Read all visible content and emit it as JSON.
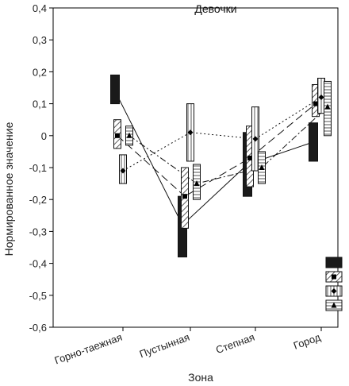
{
  "chart_data": {
    "type": "line",
    "title": "Девочки",
    "xlabel": "Зона",
    "ylabel": "Нормированное значение",
    "ylim": [
      -0.6,
      0.4
    ],
    "yticks": [
      -0.6,
      -0.5,
      -0.4,
      -0.3,
      -0.2,
      -0.1,
      0,
      0.1,
      0.2,
      0.3,
      0.4
    ],
    "ytick_labels": [
      "-0,6",
      "-0,5",
      "-0,4",
      "-0,3",
      "-0,2",
      "-0,1",
      "0",
      "0,1",
      "0,2",
      "0,3",
      "0,4"
    ],
    "categories": [
      "Горно-таежная",
      "Пустынная",
      "Степная",
      "Город"
    ],
    "grid": false,
    "legend_position": "bottom-right",
    "series": [
      {
        "pattern": "solid",
        "line_style": "solid",
        "marker": "none",
        "values": [
          0.14,
          -0.28,
          -0.09,
          -0.02
        ],
        "ranges": [
          [
            0.1,
            0.19
          ],
          [
            -0.38,
            -0.19
          ],
          [
            -0.19,
            0.01
          ],
          [
            -0.08,
            0.04
          ]
        ]
      },
      {
        "pattern": "diagonal-hatch",
        "line_style": "dashed",
        "marker": "square",
        "values": [
          0.0,
          -0.19,
          -0.07,
          0.1
        ],
        "ranges": [
          [
            -0.04,
            0.05
          ],
          [
            -0.29,
            -0.1
          ],
          [
            -0.16,
            0.03
          ],
          [
            0.06,
            0.16
          ]
        ]
      },
      {
        "pattern": "vertical-stripes",
        "line_style": "dotted",
        "marker": "diamond",
        "values": [
          -0.11,
          0.01,
          -0.01,
          0.12
        ],
        "ranges": [
          [
            -0.15,
            -0.06
          ],
          [
            -0.08,
            0.1
          ],
          [
            -0.11,
            0.09
          ],
          [
            0.07,
            0.18
          ]
        ]
      },
      {
        "pattern": "horizontal-stripes",
        "line_style": "dash-dot",
        "marker": "triangle",
        "values": [
          0.0,
          -0.15,
          -0.1,
          0.09
        ],
        "ranges": [
          [
            -0.03,
            0.03
          ],
          [
            -0.2,
            -0.09
          ],
          [
            -0.15,
            -0.05
          ],
          [
            0.0,
            0.17
          ]
        ]
      }
    ]
  }
}
